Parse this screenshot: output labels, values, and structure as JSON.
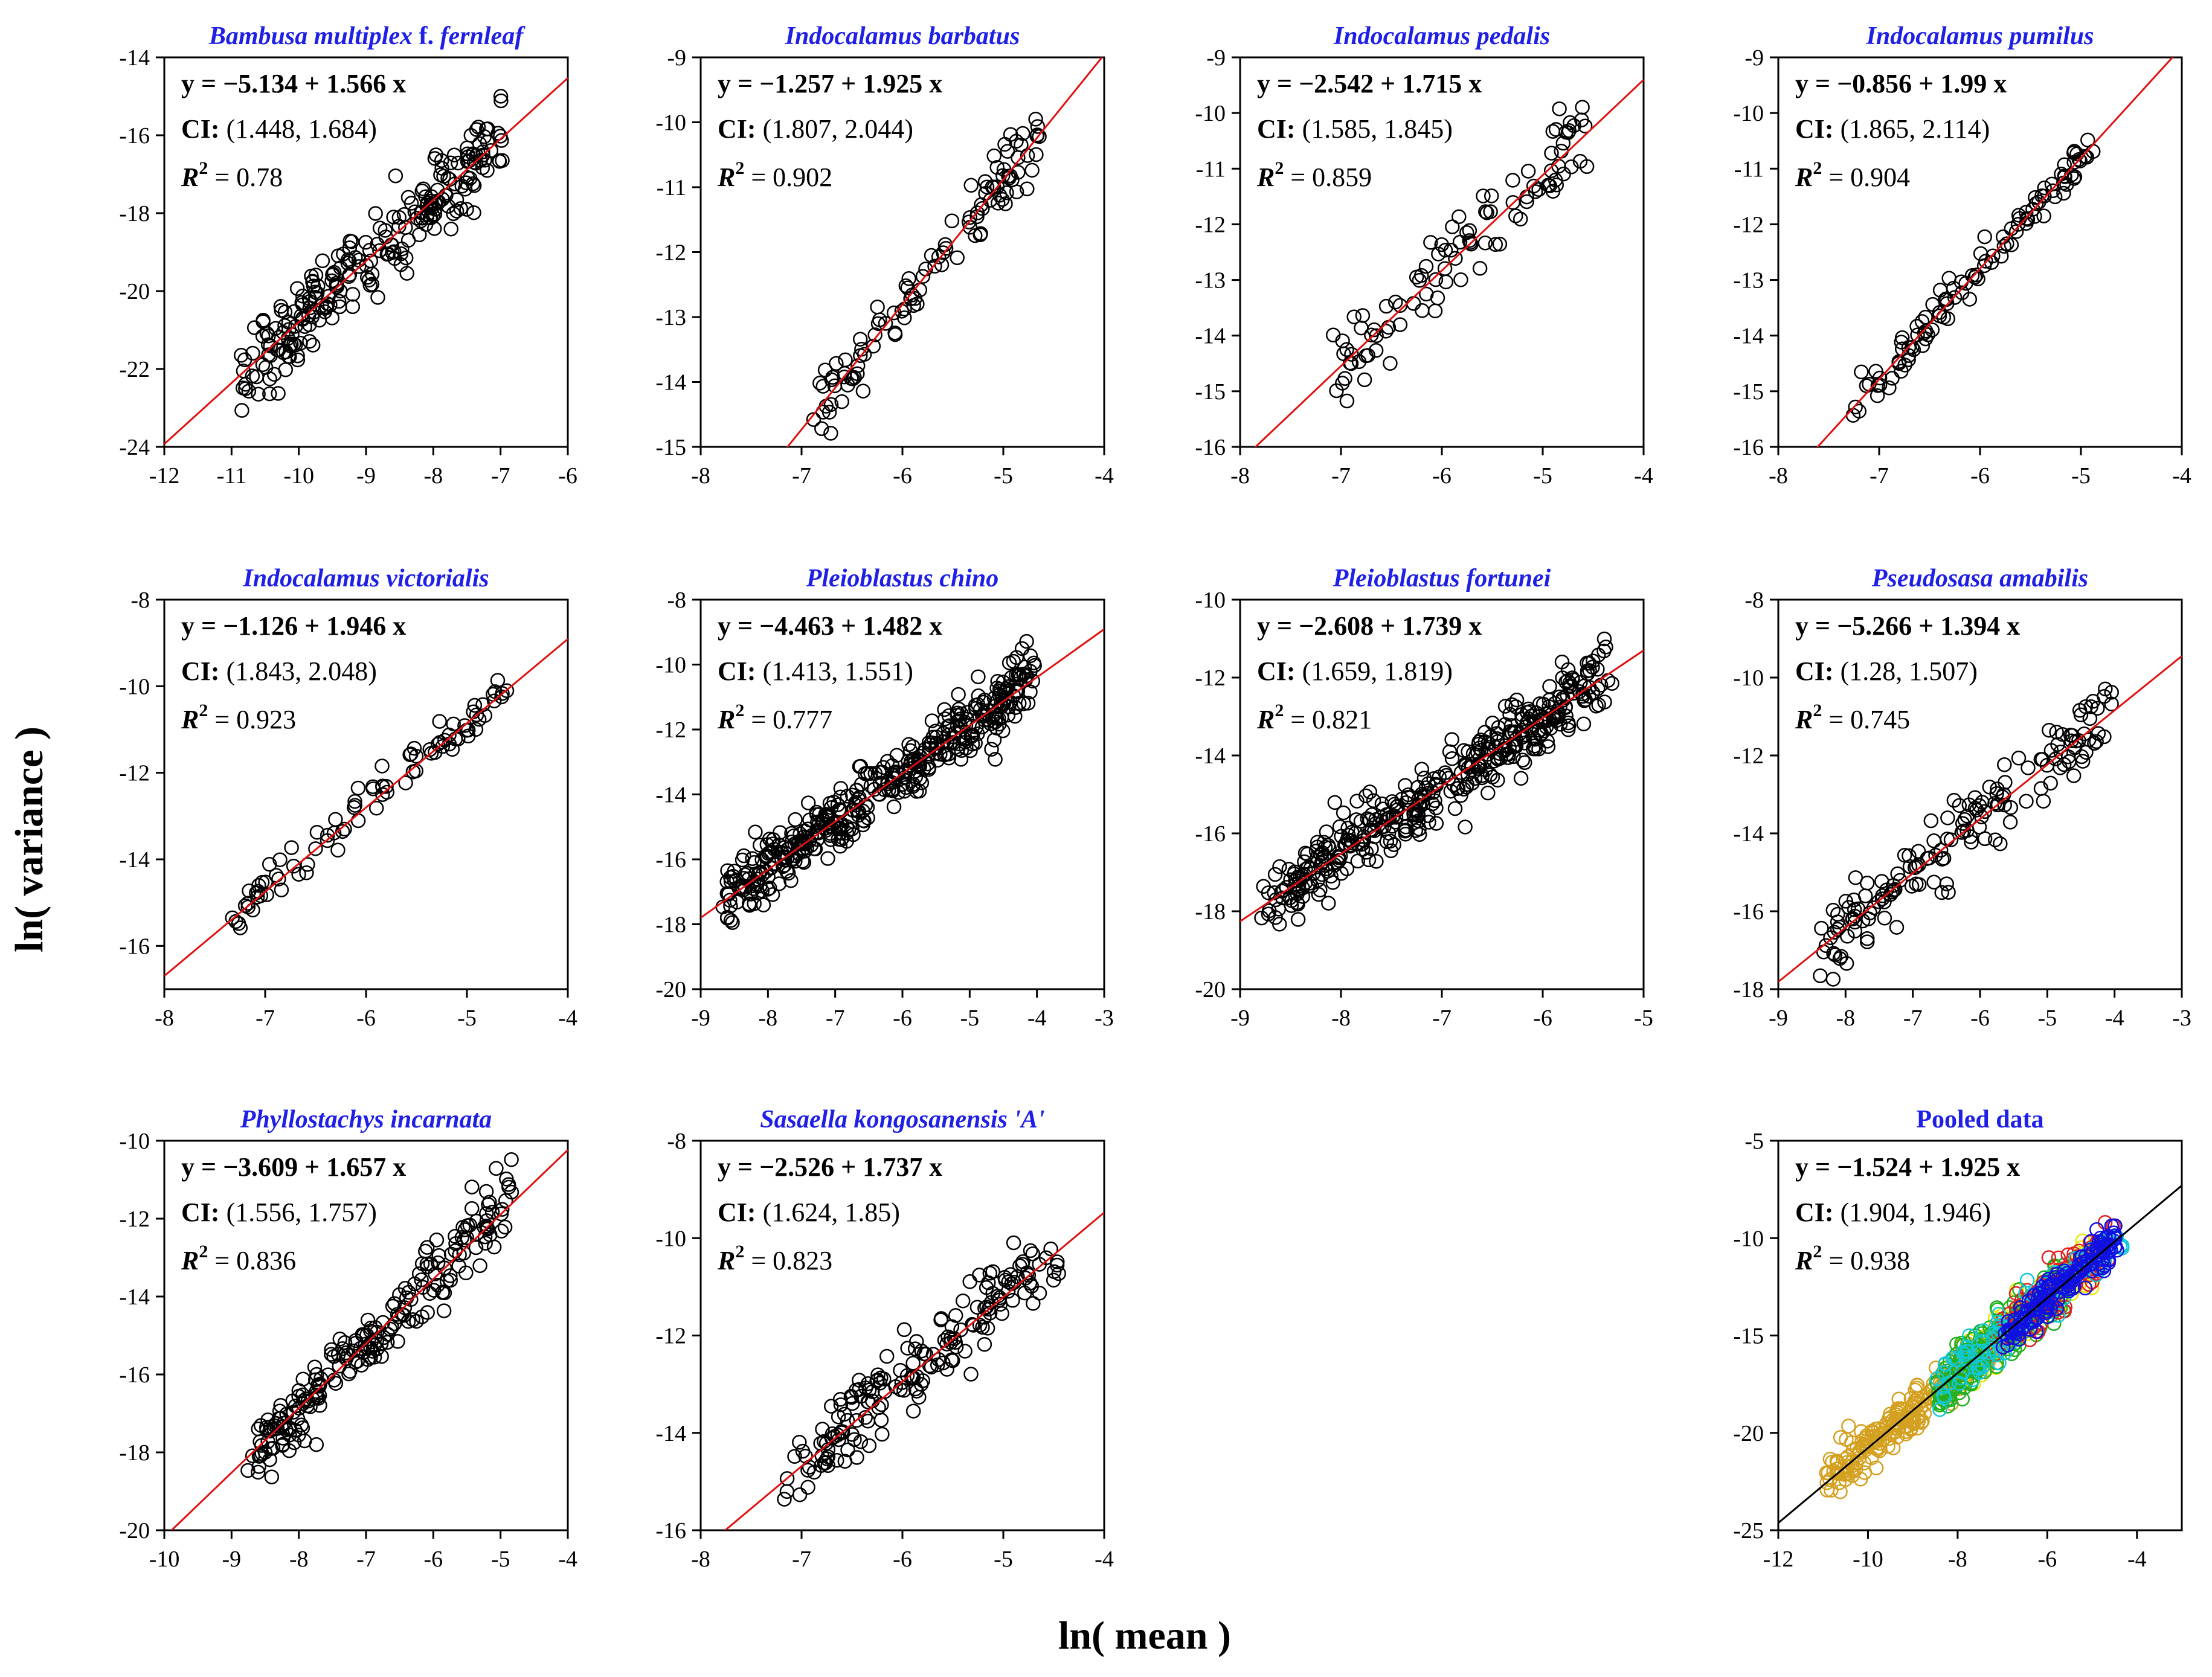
{
  "figure": {
    "ylabel": "ln( variance )",
    "xlabel": "ln( mean )"
  },
  "colors": {
    "title": "#1f1fe6",
    "fit_line": "#e01010",
    "pooled_line": "#000000",
    "points": "#000000"
  },
  "chart_data": [
    {
      "type": "scatter",
      "title": "Bambusa multiplex f. fernleaf",
      "title_parts": [
        {
          "text": "Bambusa multiplex ",
          "italic": true
        },
        {
          "text": "f. ",
          "italic": false
        },
        {
          "text": "fernleaf",
          "italic": true
        }
      ],
      "equation": "y = −5.134 + 1.566 x",
      "ci": "(1.448, 1.684)",
      "r2": "0.78",
      "intercept": -5.134,
      "slope": 1.566,
      "xlim": [
        -12,
        -6
      ],
      "ylim": [
        -24,
        -14
      ],
      "xticks": [
        "-12",
        "-11",
        "-10",
        "-9",
        "-8",
        "-7",
        "-6"
      ],
      "yticks": [
        "-24",
        "-22",
        "-20",
        "-18",
        "-16",
        "-14"
      ],
      "n": 250,
      "spread": 0.55,
      "xrange": [
        -10.9,
        -6.9
      ],
      "seed": 11
    },
    {
      "type": "scatter",
      "title": "Indocalamus barbatus",
      "title_parts": [
        {
          "text": "Indocalamus barbatus",
          "italic": true
        }
      ],
      "equation": "y = −1.257 + 1.925 x",
      "ci": "(1.807, 2.044)",
      "r2": "0.902",
      "intercept": -1.257,
      "slope": 1.925,
      "xlim": [
        -8,
        -4
      ],
      "ylim": [
        -15,
        -9
      ],
      "xticks": [
        "-8",
        "-7",
        "-6",
        "-5",
        "-4"
      ],
      "yticks": [
        "-15",
        "-14",
        "-13",
        "-12",
        "-11",
        "-10",
        "-9"
      ],
      "n": 110,
      "spread": 0.22,
      "xrange": [
        -6.9,
        -4.6
      ],
      "seed": 22
    },
    {
      "type": "scatter",
      "title": "Indocalamus pedalis",
      "title_parts": [
        {
          "text": "Indocalamus pedalis",
          "italic": true
        }
      ],
      "equation": "y = −2.542 + 1.715 x",
      "ci": "(1.585, 1.845)",
      "r2": "0.859",
      "intercept": -2.542,
      "slope": 1.715,
      "xlim": [
        -8,
        -4
      ],
      "ylim": [
        -16,
        -9
      ],
      "xticks": [
        "-8",
        "-7",
        "-6",
        "-5",
        "-4"
      ],
      "yticks": [
        "-16",
        "-15",
        "-14",
        "-13",
        "-12",
        "-11",
        "-10",
        "-9"
      ],
      "n": 100,
      "spread": 0.35,
      "xrange": [
        -7.1,
        -4.5
      ],
      "seed": 33
    },
    {
      "type": "scatter",
      "title": "Indocalamus pumilus",
      "title_parts": [
        {
          "text": "Indocalamus pumilus",
          "italic": true
        }
      ],
      "equation": "y = −0.856 + 1.99 x",
      "ci": "(1.865, 2.114)",
      "r2": "0.904",
      "intercept": -0.856,
      "slope": 1.99,
      "xlim": [
        -8,
        -4
      ],
      "ylim": [
        -16,
        -9
      ],
      "xticks": [
        "-8",
        "-7",
        "-6",
        "-5",
        "-4"
      ],
      "yticks": [
        "-16",
        "-15",
        "-14",
        "-13",
        "-12",
        "-11",
        "-10",
        "-9"
      ],
      "n": 110,
      "spread": 0.2,
      "xrange": [
        -7.3,
        -4.8
      ],
      "seed": 44
    },
    {
      "type": "scatter",
      "title": "Indocalamus victorialis",
      "title_parts": [
        {
          "text": "Indocalamus victorialis",
          "italic": true
        }
      ],
      "equation": "y = −1.126 + 1.946 x",
      "ci": "(1.843, 2.048)",
      "r2": "0.923",
      "intercept": -1.126,
      "slope": 1.946,
      "xlim": [
        -8,
        -4
      ],
      "ylim": [
        -17,
        -8
      ],
      "xticks": [
        "-8",
        "-7",
        "-6",
        "-5",
        "-4"
      ],
      "yticks": [
        "-16",
        "-14",
        "-12",
        "-10",
        "-8"
      ],
      "n": 90,
      "spread": 0.25,
      "xrange": [
        -7.5,
        -4.5
      ],
      "seed": 55
    },
    {
      "type": "scatter",
      "title": "Pleioblastus chino",
      "title_parts": [
        {
          "text": "Pleioblastus chino",
          "italic": true
        }
      ],
      "equation": "y = −4.463 + 1.482 x",
      "ci": "(1.413, 1.551)",
      "r2": "0.777",
      "intercept": -4.463,
      "slope": 1.482,
      "xlim": [
        -9,
        -3
      ],
      "ylim": [
        -20,
        -8
      ],
      "xticks": [
        "-9",
        "-8",
        "-7",
        "-6",
        "-5",
        "-4",
        "-3"
      ],
      "yticks": [
        "-20",
        "-18",
        "-16",
        "-14",
        "-12",
        "-10",
        "-8"
      ],
      "n": 420,
      "spread": 0.5,
      "xrange": [
        -8.7,
        -4.0
      ],
      "seed": 66
    },
    {
      "type": "scatter",
      "title": "Pleioblastus fortunei",
      "title_parts": [
        {
          "text": "Pleioblastus fortunei",
          "italic": true
        }
      ],
      "equation": "y = −2.608 + 1.739 x",
      "ci": "(1.659, 1.819)",
      "r2": "0.821",
      "intercept": -2.608,
      "slope": 1.739,
      "xlim": [
        -9,
        -5
      ],
      "ylim": [
        -20,
        -10
      ],
      "xticks": [
        "-9",
        "-8",
        "-7",
        "-6",
        "-5"
      ],
      "yticks": [
        "-20",
        "-18",
        "-16",
        "-14",
        "-12",
        "-10"
      ],
      "n": 400,
      "spread": 0.45,
      "xrange": [
        -8.8,
        -5.3
      ],
      "seed": 77
    },
    {
      "type": "scatter",
      "title": "Pseudosasa amabilis",
      "title_parts": [
        {
          "text": "Pseudosasa amabilis",
          "italic": true
        }
      ],
      "equation": "y = −5.266 + 1.394 x",
      "ci": "(1.28, 1.507)",
      "r2": "0.745",
      "intercept": -5.266,
      "slope": 1.394,
      "xlim": [
        -9,
        -3
      ],
      "ylim": [
        -18,
        -8
      ],
      "xticks": [
        "-9",
        "-8",
        "-7",
        "-6",
        "-5",
        "-4",
        "-3"
      ],
      "yticks": [
        "-18",
        "-16",
        "-14",
        "-12",
        "-10",
        "-8"
      ],
      "n": 160,
      "spread": 0.5,
      "xrange": [
        -8.4,
        -4.0
      ],
      "seed": 88
    },
    {
      "type": "scatter",
      "title": "Phyllostachys incarnata",
      "title_parts": [
        {
          "text": "Phyllostachys incarnata",
          "italic": true
        }
      ],
      "equation": "y = −3.609 + 1.657 x",
      "ci": "(1.556, 1.757)",
      "r2": "0.836",
      "intercept": -3.609,
      "slope": 1.657,
      "xlim": [
        -10,
        -4
      ],
      "ylim": [
        -20,
        -10
      ],
      "xticks": [
        "-10",
        "-9",
        "-8",
        "-7",
        "-6",
        "-5",
        "-4"
      ],
      "yticks": [
        "-20",
        "-18",
        "-16",
        "-14",
        "-12",
        "-10"
      ],
      "n": 220,
      "spread": 0.45,
      "xrange": [
        -8.8,
        -4.8
      ],
      "seed": 99
    },
    {
      "type": "scatter",
      "title": "Sasaella kongosanensis 'A'",
      "title_parts": [
        {
          "text": "Sasaella kongosanensis 'A'",
          "italic": true
        }
      ],
      "equation": "y = −2.526 + 1.737 x",
      "ci": "(1.624, 1.85)",
      "r2": "0.823",
      "intercept": -2.526,
      "slope": 1.737,
      "xlim": [
        -8,
        -4
      ],
      "ylim": [
        -16,
        -8
      ],
      "xticks": [
        "-8",
        "-7",
        "-6",
        "-5",
        "-4"
      ],
      "yticks": [
        "-16",
        "-14",
        "-12",
        "-10",
        "-8"
      ],
      "n": 180,
      "spread": 0.38,
      "xrange": [
        -7.2,
        -4.4
      ],
      "seed": 111
    },
    {
      "type": "scatter",
      "title": "Pooled data",
      "title_parts": [
        {
          "text": "Pooled data",
          "italic": false
        }
      ],
      "equation": "y = −1.524 + 1.925 x",
      "ci": "(1.904, 1.946)",
      "r2": "0.938",
      "intercept": -1.524,
      "slope": 1.925,
      "xlim": [
        -12,
        -3
      ],
      "ylim": [
        -25,
        -5
      ],
      "xticks": [
        "-12",
        "-10",
        "-8",
        "-6",
        "-4"
      ],
      "yticks": [
        "-25",
        "-20",
        "-15",
        "-10",
        "-5"
      ],
      "pooled": true,
      "groups": [
        {
          "color": "#d4a020",
          "n": 240,
          "xrange": [
            -11.0,
            -7.0
          ],
          "spread": 0.6,
          "seed": 201
        },
        {
          "color": "#e8e800",
          "n": 120,
          "xrange": [
            -7.8,
            -4.8
          ],
          "spread": 0.6,
          "seed": 202
        },
        {
          "color": "#20b020",
          "n": 220,
          "xrange": [
            -8.5,
            -5.5
          ],
          "spread": 0.7,
          "seed": 203
        },
        {
          "color": "#e02020",
          "n": 90,
          "xrange": [
            -7.2,
            -4.5
          ],
          "spread": 0.7,
          "seed": 204
        },
        {
          "color": "#10c8d8",
          "n": 90,
          "xrange": [
            -8.5,
            -4.3
          ],
          "spread": 0.6,
          "seed": 205
        },
        {
          "color": "#1010e0",
          "n": 160,
          "xrange": [
            -7.0,
            -4.4
          ],
          "spread": 0.45,
          "seed": 206
        }
      ]
    }
  ]
}
